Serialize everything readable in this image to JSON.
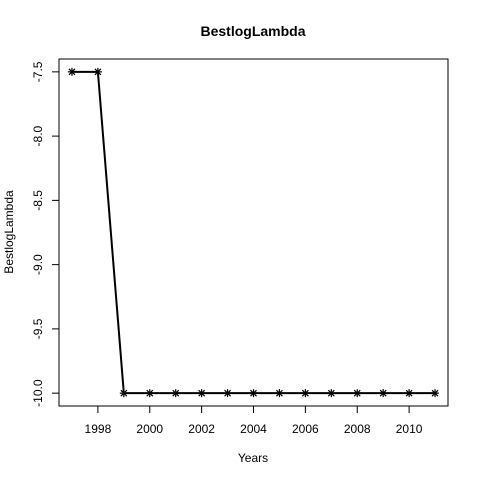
{
  "chart_data": {
    "type": "line",
    "title": "BestlogLambda",
    "xlabel": "Years",
    "ylabel": "BestlogLambda",
    "xlim": [
      1996.5,
      2011.5
    ],
    "ylim": [
      -10.1,
      -7.4
    ],
    "x_ticks": [
      1998,
      2000,
      2002,
      2004,
      2006,
      2008,
      2010
    ],
    "x_tick_labels": [
      "1998",
      "2000",
      "2002",
      "2004",
      "2006",
      "2008",
      "2010"
    ],
    "y_ticks": [
      -10.0,
      -9.5,
      -9.0,
      -8.5,
      -8.0,
      -7.5
    ],
    "y_tick_labels": [
      "-10.0",
      "-9.5",
      "-9.0",
      "-8.5",
      "-8.0",
      "-7.5"
    ],
    "marker": "asterisk",
    "grid": false,
    "series": [
      {
        "x": [
          1997,
          1998,
          1999,
          2000,
          2001,
          2002,
          2003,
          2004,
          2005,
          2006,
          2007,
          2008,
          2009,
          2010,
          2011
        ],
        "values": [
          -7.5,
          -7.5,
          -10.0,
          -10.0,
          -10.0,
          -10.0,
          -10.0,
          -10.0,
          -10.0,
          -10.0,
          -10.0,
          -10.0,
          -10.0,
          -10.0,
          -10.0
        ]
      }
    ]
  }
}
